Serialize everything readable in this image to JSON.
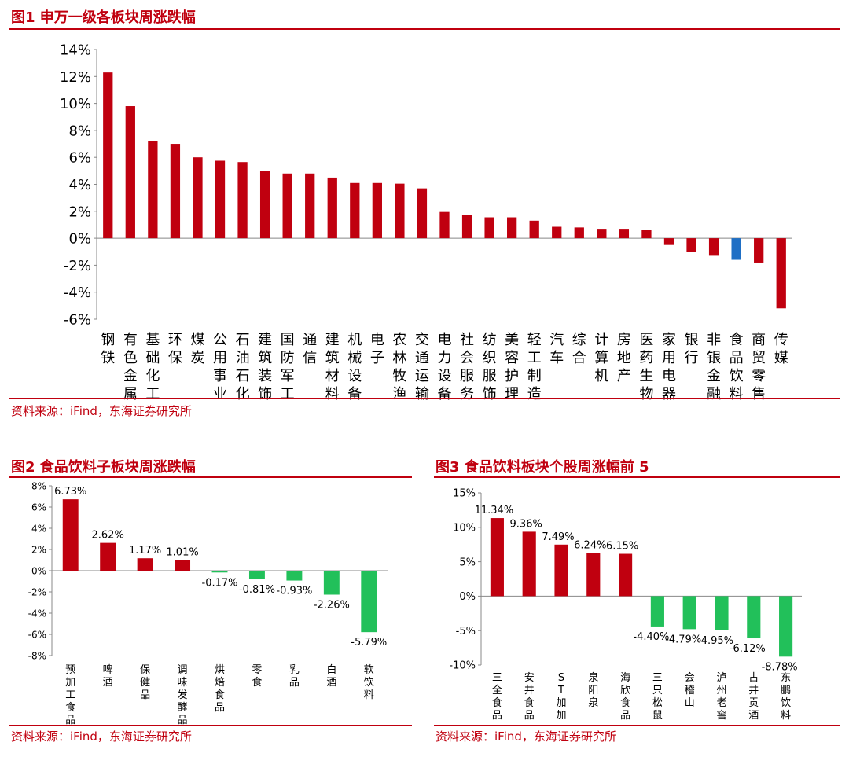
{
  "colors": {
    "accent": "#c0000f",
    "neg_green": "#22c05a",
    "bar_red": "#c0000f",
    "highlight_blue": "#1f6fc5"
  },
  "fig1": {
    "title": "图1  申万一级各板块周涨跌幅",
    "source": "资料来源：iFind，东海证券研究所"
  },
  "fig2": {
    "title": "图2  食品饮料子板块周涨跌幅",
    "source": "资料来源：iFind，东海证券研究所"
  },
  "fig3": {
    "title": "图3  食品饮料板块个股周涨幅前 5",
    "source": "资料来源：iFind，东海证券研究所"
  },
  "chart_data": [
    {
      "type": "bar",
      "title": "申万一级各板块周涨跌幅",
      "categories": [
        "钢铁",
        "有色金属",
        "基础化工",
        "环保",
        "煤炭",
        "公用事业",
        "石油石化",
        "建筑装饰",
        "国防军工",
        "通信",
        "建筑材料",
        "机械设备",
        "电子",
        "农林牧渔",
        "交通运输",
        "电力设备",
        "社会服务",
        "纺织服饰",
        "美容护理",
        "轻工制造",
        "汽车",
        "综合",
        "计算机",
        "房地产",
        "医药生物",
        "家用电器",
        "银行",
        "非银金融",
        "食品饮料",
        "商贸零售",
        "传媒"
      ],
      "values": [
        12.3,
        9.8,
        7.2,
        7.0,
        6.0,
        5.75,
        5.65,
        5.0,
        4.8,
        4.8,
        4.5,
        4.1,
        4.1,
        4.05,
        3.7,
        1.95,
        1.75,
        1.55,
        1.55,
        1.3,
        0.85,
        0.8,
        0.7,
        0.7,
        0.6,
        -0.5,
        -1.0,
        -1.3,
        -1.6,
        -1.8,
        -5.2
      ],
      "highlight": "食品饮料",
      "ylim": [
        -6,
        14
      ],
      "yticks": [
        "14%",
        "12%",
        "10%",
        "8%",
        "6%",
        "4%",
        "2%",
        "0%",
        "-2%",
        "-4%",
        "-6%"
      ],
      "xlabel": "",
      "ylabel": ""
    },
    {
      "type": "bar",
      "title": "食品饮料子板块周涨跌幅",
      "categories": [
        "预加工食品",
        "啤酒",
        "保健品",
        "调味发酵品",
        "烘焙食品",
        "零食",
        "乳品",
        "白酒",
        "软饮料"
      ],
      "values": [
        6.73,
        2.62,
        1.17,
        1.01,
        -0.17,
        -0.81,
        -0.93,
        -2.26,
        -5.79
      ],
      "labels": [
        "6.73%",
        "2.62%",
        "1.17%",
        "1.01%",
        "-0.17%",
        "-0.81%",
        "-0.93%",
        "-2.26%",
        "-5.79%"
      ],
      "ylim": [
        -8,
        8
      ],
      "yticks": [
        "8%",
        "6%",
        "4%",
        "2%",
        "0%",
        "-2%",
        "-4%",
        "-6%",
        "-8%"
      ],
      "xlabel": "",
      "ylabel": ""
    },
    {
      "type": "bar",
      "title": "食品饮料板块个股周涨幅前 5",
      "categories": [
        "三全食品",
        "安井食品",
        "ST加加",
        "泉阳泉",
        "海欣食品",
        "三只松鼠",
        "会稽山",
        "泸州老窖",
        "古井贡酒",
        "东鹏饮料"
      ],
      "values": [
        11.34,
        9.36,
        7.49,
        6.24,
        6.15,
        -4.4,
        -4.79,
        -4.95,
        -6.12,
        -8.78
      ],
      "labels": [
        "11.34%",
        "9.36%",
        "7.49%",
        "6.24%",
        "6.15%",
        "-4.40%",
        "-4.79%",
        "-4.95%",
        "-6.12%",
        "-8.78%"
      ],
      "ylim": [
        -10,
        15
      ],
      "yticks": [
        "15%",
        "10%",
        "5%",
        "0%",
        "-5%",
        "-10%"
      ],
      "xlabel": "",
      "ylabel": ""
    }
  ]
}
